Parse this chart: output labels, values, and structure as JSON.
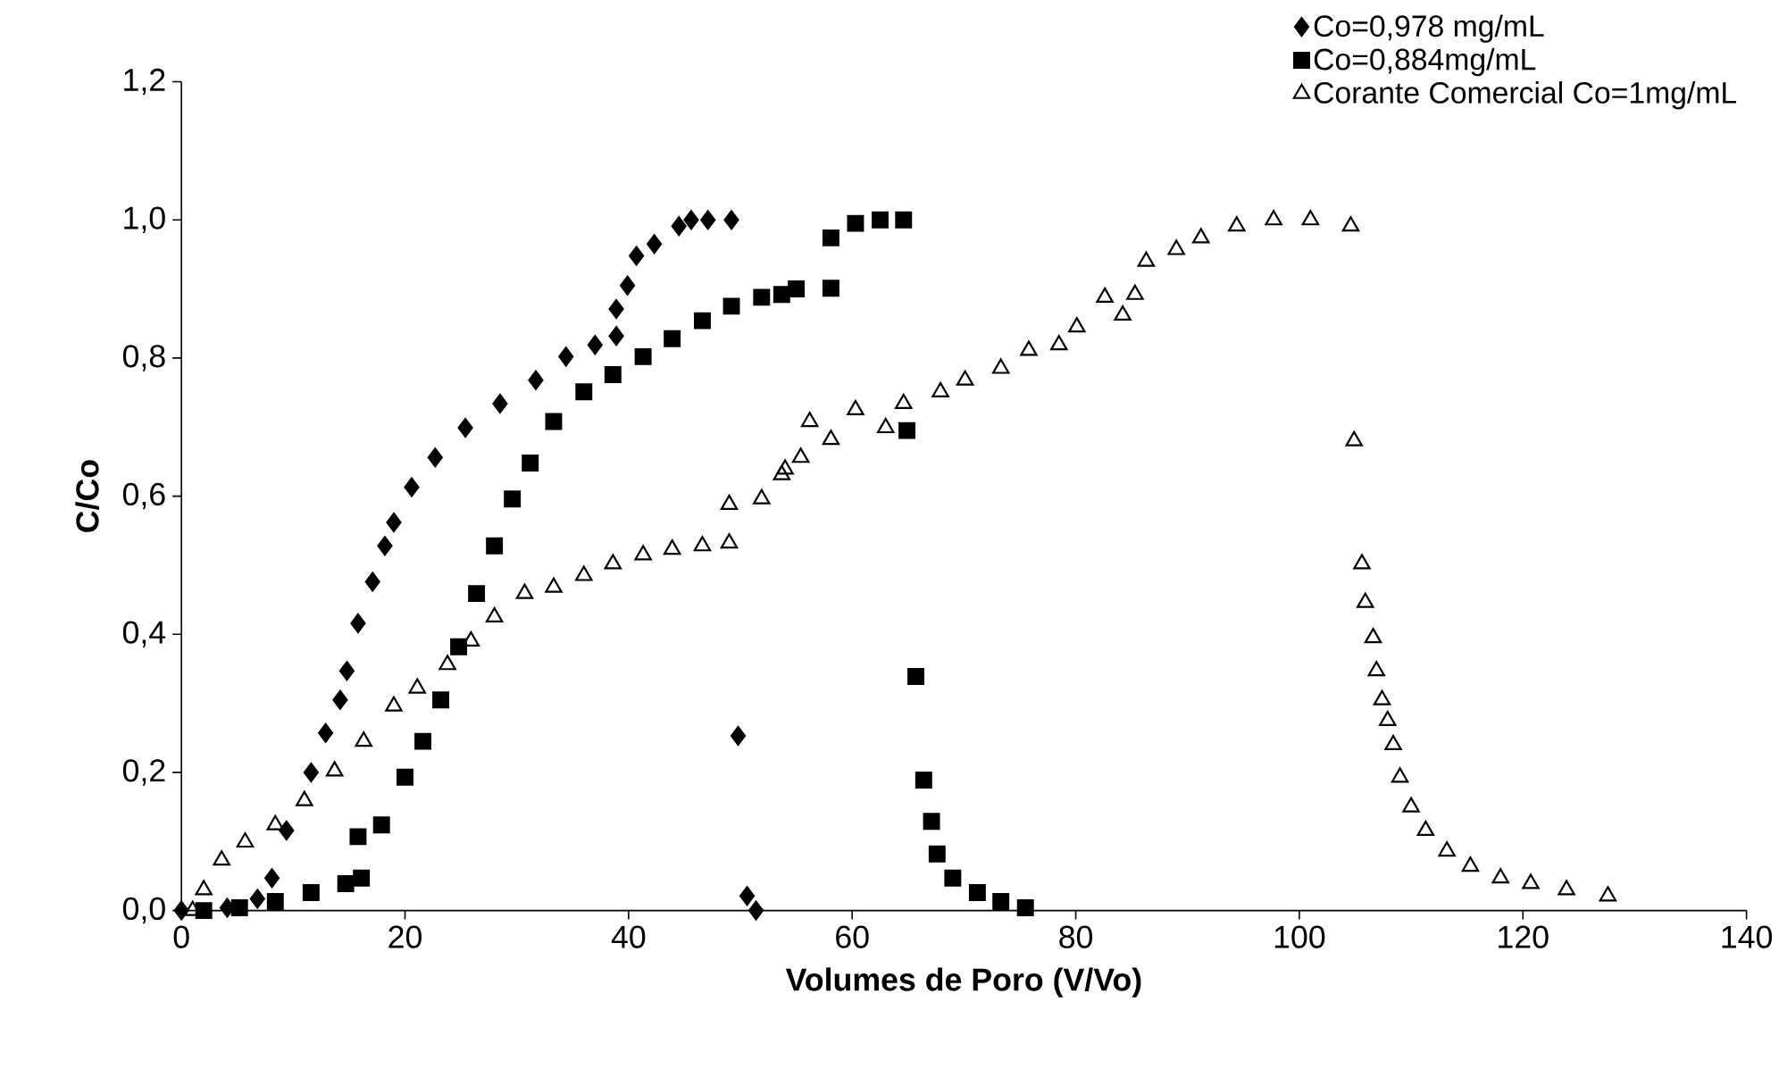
{
  "chart_data": {
    "type": "scatter",
    "xlabel": "Volumes de Poro (V/Vo)",
    "ylabel": "C/Co",
    "xlim": [
      0,
      140
    ],
    "xticks": [
      0,
      20,
      40,
      60,
      80,
      100,
      120,
      140
    ],
    "ylim": [
      0,
      1.2
    ],
    "yticks": [
      {
        "value": 0,
        "label": "0,0"
      },
      {
        "value": 0.2,
        "label": "0,2"
      },
      {
        "value": 0.4,
        "label": "0,4"
      },
      {
        "value": 0.6,
        "label": "0,6"
      },
      {
        "value": 0.8,
        "label": "0,8"
      },
      {
        "value": 1.0,
        "label": "1,0"
      },
      {
        "value": 1.2,
        "label": "1,2"
      }
    ],
    "grid": false,
    "legend": "top right",
    "series": [
      {
        "name": "Co=0,978 mg/mL",
        "color": "#000000",
        "marker": "diamond",
        "x": [
          0,
          4.1,
          6.8,
          8.1,
          9.4,
          11.6,
          12.9,
          14.2,
          14.8,
          15.8,
          17.1,
          18.2,
          19,
          20.6,
          22.7,
          25.4,
          28.5,
          31.7,
          34.4,
          37,
          38.9,
          38.9,
          39.9,
          40.7,
          42.3,
          44.5,
          45.6,
          47.1,
          49.2,
          49.8,
          50.6,
          51.4
        ],
        "values": [
          0,
          0.004,
          0.017,
          0.047,
          0.116,
          0.2,
          0.257,
          0.305,
          0.347,
          0.416,
          0.476,
          0.528,
          0.562,
          0.613,
          0.656,
          0.699,
          0.734,
          0.768,
          0.802,
          0.819,
          0.832,
          0.871,
          0.905,
          0.948,
          0.965,
          0.991,
          1.0,
          1.0,
          1.0,
          0.253,
          0.021,
          0
        ]
      },
      {
        "name": "Co=0,884mg/mL",
        "color": "#000000",
        "marker": "square",
        "x": [
          2,
          5.2,
          8.4,
          11.6,
          14.7,
          16.1,
          15.8,
          17.9,
          20,
          21.6,
          23.2,
          24.8,
          26.4,
          28,
          29.6,
          31.2,
          33.3,
          36,
          38.6,
          41.3,
          43.9,
          46.6,
          49.2,
          51.9,
          53.7,
          55,
          58.1,
          58.1,
          60.3,
          62.5,
          64.6,
          64.9,
          65.7,
          66.4,
          67.1,
          67.6,
          69,
          71.2,
          73.3,
          75.5
        ],
        "values": [
          0,
          0.004,
          0.013,
          0.026,
          0.039,
          0.047,
          0.107,
          0.124,
          0.193,
          0.245,
          0.305,
          0.382,
          0.459,
          0.528,
          0.596,
          0.648,
          0.708,
          0.751,
          0.776,
          0.802,
          0.828,
          0.854,
          0.875,
          0.888,
          0.892,
          0.9,
          0.901,
          0.974,
          0.995,
          1.0,
          1.0,
          0.695,
          0.339,
          0.189,
          0.129,
          0.082,
          0.047,
          0.026,
          0.013,
          0.004
        ]
      },
      {
        "name": "Corante Comercial Co=1mg/mL",
        "color": "#000000",
        "marker": "triangle",
        "x": [
          1,
          2,
          3.6,
          5.7,
          8.4,
          11,
          13.7,
          16.3,
          19,
          21.1,
          23.8,
          25.9,
          28,
          30.7,
          33.3,
          36,
          38.6,
          41.3,
          43.9,
          46.6,
          49,
          49,
          51.9,
          53.7,
          54,
          55.4,
          56.2,
          58.1,
          60.3,
          63,
          64.6,
          67.9,
          70.1,
          73.3,
          75.8,
          78.5,
          80.1,
          82.6,
          84.2,
          85.3,
          86.3,
          89,
          91.2,
          94.4,
          97.7,
          101,
          104.6,
          104.9,
          105.6,
          105.9,
          106.6,
          106.9,
          107.4,
          107.9,
          108.4,
          109,
          110,
          111.3,
          113.2,
          115.3,
          118,
          120.7,
          123.9,
          127.6
        ],
        "values": [
          0,
          0.03,
          0.073,
          0.099,
          0.124,
          0.159,
          0.202,
          0.245,
          0.296,
          0.322,
          0.356,
          0.39,
          0.425,
          0.459,
          0.468,
          0.485,
          0.502,
          0.515,
          0.523,
          0.528,
          0.532,
          0.588,
          0.596,
          0.631,
          0.639,
          0.656,
          0.708,
          0.682,
          0.725,
          0.699,
          0.734,
          0.751,
          0.768,
          0.785,
          0.811,
          0.819,
          0.845,
          0.888,
          0.862,
          0.892,
          0.94,
          0.957,
          0.974,
          0.991,
          1.0,
          1.0,
          0.991,
          0.68,
          0.502,
          0.446,
          0.395,
          0.347,
          0.305,
          0.275,
          0.24,
          0.193,
          0.15,
          0.116,
          0.086,
          0.064,
          0.047,
          0.039,
          0.03,
          0.021
        ]
      }
    ]
  }
}
